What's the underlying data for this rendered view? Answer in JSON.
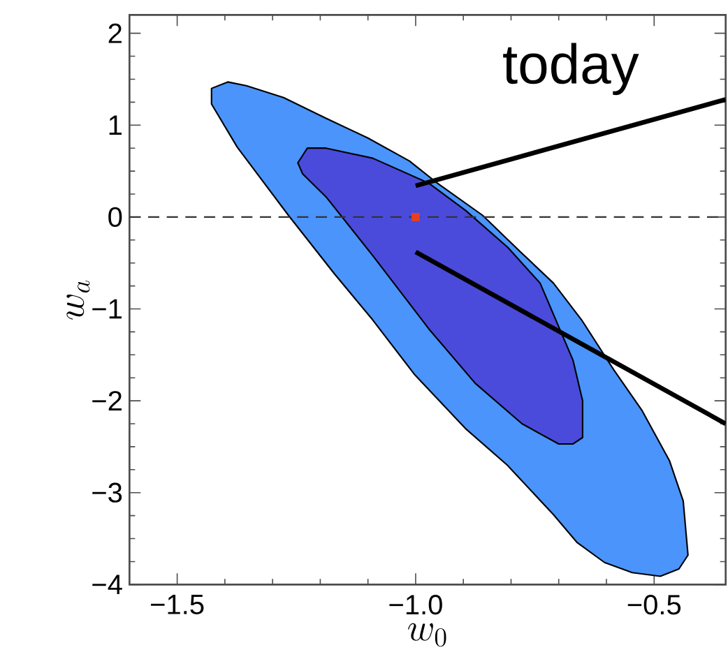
{
  "chart_data": {
    "type": "area",
    "xlabel": "w_0",
    "ylabel": "w_a",
    "xlim": [
      -1.6,
      -0.35
    ],
    "ylim": [
      -4,
      2.2
    ],
    "xticks": [
      {
        "value": -1.5,
        "label": "−1.5"
      },
      {
        "value": -1.0,
        "label": "−1.0"
      },
      {
        "value": -0.5,
        "label": "−0.5"
      }
    ],
    "yticks": [
      {
        "value": -4,
        "label": "−4"
      },
      {
        "value": -3,
        "label": "−3"
      },
      {
        "value": -2,
        "label": "−2"
      },
      {
        "value": -1,
        "label": "−1"
      },
      {
        "value": 0,
        "label": "0"
      },
      {
        "value": 1,
        "label": "1"
      },
      {
        "value": 2,
        "label": "2"
      }
    ],
    "series": [
      {
        "color": "#4a94fb",
        "x": [
          -1.428,
          -1.394,
          -1.355,
          -1.277,
          -1.19,
          -1.1,
          -1.013,
          -0.955,
          -0.86,
          -0.78,
          -0.711,
          -0.652,
          -0.585,
          -0.526,
          -0.468,
          -0.439,
          -0.429,
          -0.448,
          -0.487,
          -0.546,
          -0.604,
          -0.662,
          -0.711,
          -0.808,
          -0.896,
          -1.003,
          -1.09,
          -1.17,
          -1.267,
          -1.374,
          -1.428
        ],
        "values": [
          1.4,
          1.47,
          1.43,
          1.3,
          1.08,
          0.86,
          0.61,
          0.37,
          0.02,
          -0.38,
          -0.72,
          -1.12,
          -1.66,
          -2.1,
          -2.65,
          -3.09,
          -3.68,
          -3.83,
          -3.91,
          -3.87,
          -3.76,
          -3.54,
          -3.24,
          -2.7,
          -2.3,
          -1.71,
          -1.12,
          -0.62,
          0.02,
          0.76,
          1.23
        ]
      },
      {
        "color": "#4a4bdb",
        "x": [
          -1.247,
          -1.227,
          -1.188,
          -1.09,
          -0.973,
          -0.895,
          -0.807,
          -0.739,
          -0.67,
          -0.65,
          -0.65,
          -0.67,
          -0.7,
          -0.777,
          -0.875,
          -0.972,
          -1.09,
          -1.188,
          -1.237
        ],
        "values": [
          0.59,
          0.75,
          0.75,
          0.64,
          0.37,
          0.07,
          -0.33,
          -0.72,
          -1.56,
          -2.0,
          -2.4,
          -2.47,
          -2.47,
          -2.25,
          -1.81,
          -1.22,
          -0.42,
          0.22,
          0.47
        ]
      },
      {
        "type": "line",
        "color": "#000000",
        "x": [
          -1.0,
          -0.35
        ],
        "values": [
          0.34,
          1.28
        ]
      },
      {
        "type": "line",
        "color": "#000000",
        "x": [
          -1.0,
          -0.35
        ],
        "values": [
          -0.38,
          -2.25
        ]
      },
      {
        "type": "scatter",
        "color": "#e8401c",
        "marker": "square",
        "x": [
          -1.0
        ],
        "values": [
          0.0
        ]
      }
    ],
    "ref_lines": [
      {
        "axis": "y",
        "value": 0,
        "color": "#333333",
        "line_style": "dashed"
      }
    ],
    "annotations": [
      "today"
    ]
  }
}
